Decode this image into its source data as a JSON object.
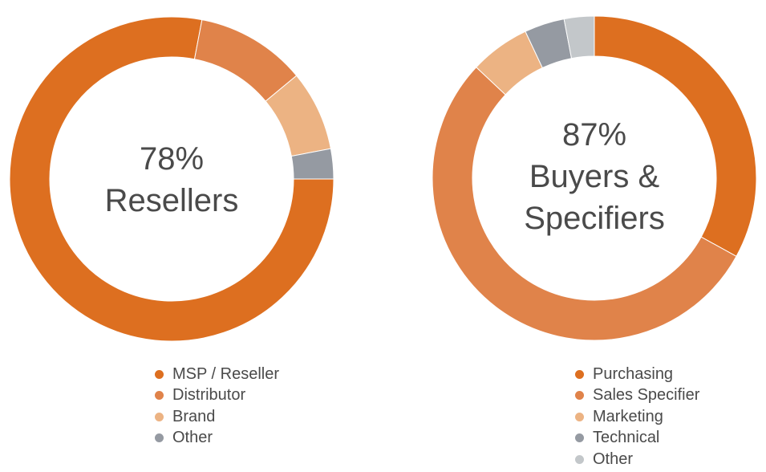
{
  "chart_data": [
    {
      "type": "pie",
      "variant": "donut",
      "center_text": [
        "78%",
        "Resellers"
      ],
      "legend_position": "bottom",
      "slices": [
        {
          "label": "MSP / Reseller",
          "value": 78,
          "color": "#DD6F20"
        },
        {
          "label": "Distributor",
          "value": 11,
          "color": "#E0834A"
        },
        {
          "label": "Brand",
          "value": 8,
          "color": "#ECB383"
        },
        {
          "label": "Other",
          "value": 3,
          "color": "#959AA2"
        }
      ]
    },
    {
      "type": "pie",
      "variant": "donut",
      "center_text": [
        "87%",
        "Buyers &",
        "Specifiers"
      ],
      "legend_position": "bottom",
      "slices": [
        {
          "label": "Purchasing",
          "value": 33,
          "color": "#DD6F20"
        },
        {
          "label": "Sales Specifier",
          "value": 54,
          "color": "#E0834A"
        },
        {
          "label": "Marketing",
          "value": 6,
          "color": "#ECB383"
        },
        {
          "label": "Technical",
          "value": 4,
          "color": "#959AA2"
        },
        {
          "label": "Other",
          "value": 3,
          "color": "#C3C7CA"
        }
      ]
    }
  ]
}
